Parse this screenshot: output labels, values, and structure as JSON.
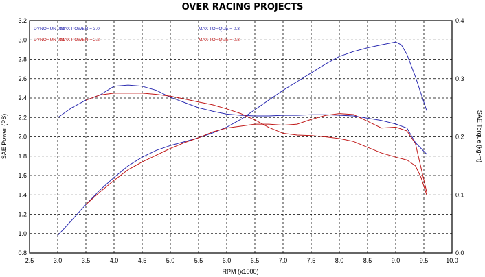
{
  "chart_data": {
    "type": "line",
    "title": "OVER RACING PROJECTS",
    "xlabel": "RPM (x1000)",
    "ylabel_left": "SAE Power (PS)",
    "ylabel_right": "SAE Torque (kg-m)",
    "xlim": [
      2.5,
      10.0
    ],
    "ylim_left": [
      0.8,
      3.2
    ],
    "ylim_right": [
      0.0,
      0.4
    ],
    "x_ticks": [
      "2.5",
      "3.0",
      "3.5",
      "4.0",
      "4.5",
      "5.0",
      "5.5",
      "6.0",
      "6.5",
      "7.0",
      "7.5",
      "8.0",
      "8.5",
      "9.0",
      "9.5",
      "10.0"
    ],
    "y_ticks_left": [
      "0.8",
      "1.0",
      "1.2",
      "1.4",
      "1.6",
      "1.8",
      "2.0",
      "2.2",
      "2.4",
      "2.6",
      "2.8",
      "3.0",
      "3.2"
    ],
    "y_ticks_right": [
      "0.0",
      "0.1",
      "0.2",
      "0.3",
      "0.4"
    ],
    "grid": true,
    "legend": [
      {
        "run": "DYNORUN 002",
        "power_text": "MAX POWER = 3.0",
        "torque_text": "MAX TORQUE = 0.3",
        "color": "#2a2ab0"
      },
      {
        "run": "DYNORUN 001",
        "power_text": "MAX POWER = 2.2",
        "torque_text": "MAX TORQUE = 0.3",
        "color": "#c01818"
      }
    ],
    "series": [
      {
        "name": "DYNORUN 002",
        "quantity": "power",
        "axis": "left",
        "color": "#2a2ab0",
        "x": [
          3.0,
          3.25,
          3.5,
          3.75,
          4.0,
          4.25,
          4.5,
          4.75,
          5.0,
          5.25,
          5.5,
          5.75,
          6.0,
          6.25,
          6.5,
          6.75,
          7.0,
          7.25,
          7.5,
          7.75,
          8.0,
          8.25,
          8.5,
          8.75,
          9.0,
          9.1,
          9.2,
          9.35,
          9.55
        ],
        "y": [
          0.98,
          1.14,
          1.3,
          1.45,
          1.58,
          1.7,
          1.79,
          1.86,
          1.91,
          1.95,
          1.99,
          2.04,
          2.1,
          2.18,
          2.28,
          2.38,
          2.48,
          2.57,
          2.66,
          2.75,
          2.83,
          2.88,
          2.92,
          2.95,
          2.98,
          2.95,
          2.85,
          2.62,
          2.27
        ]
      },
      {
        "name": "DYNORUN 001",
        "quantity": "power",
        "axis": "left",
        "color": "#c01818",
        "x": [
          3.5,
          3.75,
          4.0,
          4.25,
          4.5,
          4.75,
          5.0,
          5.25,
          5.5,
          5.75,
          6.0,
          6.25,
          6.5,
          6.75,
          7.0,
          7.25,
          7.5,
          7.75,
          8.0,
          8.25,
          8.5,
          8.75,
          9.0,
          9.2,
          9.35,
          9.45,
          9.55
        ],
        "y": [
          1.3,
          1.43,
          1.55,
          1.66,
          1.74,
          1.81,
          1.88,
          1.94,
          1.99,
          2.05,
          2.09,
          2.11,
          2.13,
          2.13,
          2.12,
          2.13,
          2.18,
          2.22,
          2.24,
          2.23,
          2.16,
          2.09,
          2.1,
          2.06,
          1.93,
          1.68,
          1.43
        ]
      },
      {
        "name": "DYNORUN 002",
        "quantity": "torque",
        "axis": "right",
        "color": "#2a2ab0",
        "x": [
          3.0,
          3.25,
          3.5,
          3.75,
          4.0,
          4.25,
          4.5,
          4.75,
          5.0,
          5.25,
          5.5,
          5.75,
          6.0,
          6.25,
          6.5,
          6.75,
          7.0,
          7.25,
          7.5,
          7.75,
          8.0,
          8.25,
          8.5,
          8.75,
          9.0,
          9.2,
          9.35,
          9.55
        ],
        "y": [
          0.233,
          0.25,
          0.263,
          0.272,
          0.287,
          0.289,
          0.287,
          0.28,
          0.268,
          0.259,
          0.25,
          0.244,
          0.239,
          0.237,
          0.236,
          0.236,
          0.237,
          0.237,
          0.238,
          0.238,
          0.237,
          0.236,
          0.232,
          0.228,
          0.222,
          0.215,
          0.19,
          0.17
        ]
      },
      {
        "name": "DYNORUN 001",
        "quantity": "torque",
        "axis": "right",
        "color": "#c01818",
        "x": [
          3.5,
          3.75,
          4.0,
          4.25,
          4.5,
          4.75,
          5.0,
          5.25,
          5.5,
          5.75,
          6.0,
          6.25,
          6.5,
          6.75,
          7.0,
          7.25,
          7.5,
          7.75,
          8.0,
          8.25,
          8.5,
          8.75,
          9.0,
          9.2,
          9.35,
          9.45,
          9.55
        ],
        "y": [
          0.263,
          0.272,
          0.275,
          0.275,
          0.275,
          0.273,
          0.27,
          0.265,
          0.26,
          0.255,
          0.248,
          0.24,
          0.229,
          0.216,
          0.206,
          0.203,
          0.202,
          0.2,
          0.197,
          0.192,
          0.182,
          0.172,
          0.165,
          0.16,
          0.15,
          0.13,
          0.1
        ]
      }
    ]
  }
}
